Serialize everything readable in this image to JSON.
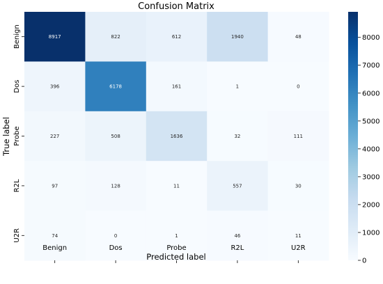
{
  "chart_data": {
    "type": "heatmap",
    "title": "Confusion Matrix",
    "xlabel": "Predicted label",
    "ylabel": "True label",
    "x_categories": [
      "Benign",
      "Dos",
      "Probe",
      "R2L",
      "U2R"
    ],
    "y_categories": [
      "Benign",
      "Dos",
      "Probe",
      "R2L",
      "U2R"
    ],
    "values": [
      [
        8917,
        822,
        612,
        1940,
        48
      ],
      [
        396,
        6178,
        161,
        1,
        0
      ],
      [
        227,
        508,
        1636,
        32,
        111
      ],
      [
        97,
        128,
        11,
        557,
        30
      ],
      [
        74,
        0,
        1,
        46,
        11
      ]
    ],
    "colormap": "Blues",
    "colorbar": {
      "ticks": [
        0,
        1000,
        2000,
        3000,
        4000,
        5000,
        6000,
        7000,
        8000
      ],
      "range": [
        0,
        8917
      ]
    },
    "grid": false
  }
}
